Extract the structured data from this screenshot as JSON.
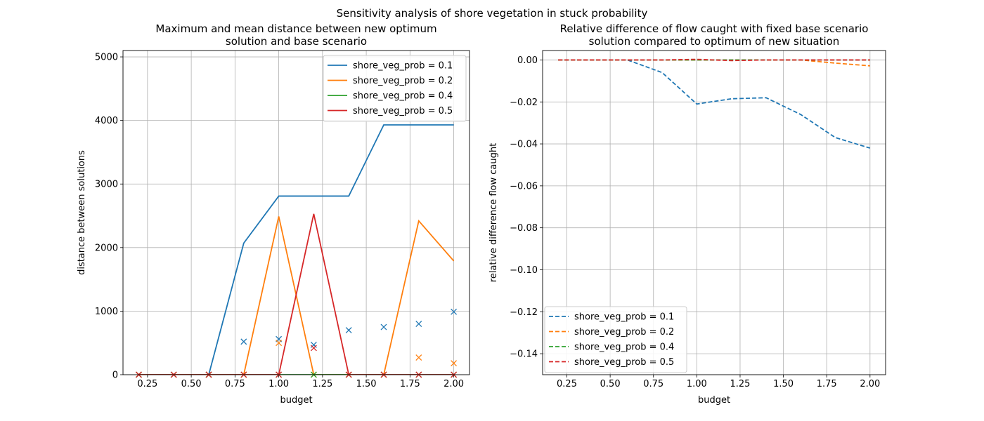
{
  "figure": {
    "suptitle": "Sensitivity analysis of shore vegetation in stuck probability"
  },
  "chart_data": [
    {
      "type": "line",
      "title_lines": [
        "Maximum and mean distance between new optimum",
        "solution and base scenario"
      ],
      "xlabel": "budget",
      "ylabel": "distance between solutions",
      "xlim": [
        0.11,
        2.09
      ],
      "ylim": [
        0,
        5100
      ],
      "xticks": [
        0.25,
        0.5,
        0.75,
        1.0,
        1.25,
        1.5,
        1.75,
        2.0
      ],
      "xtick_labels": [
        "0.25",
        "0.50",
        "0.75",
        "1.00",
        "1.25",
        "1.50",
        "1.75",
        "2.00"
      ],
      "yticks": [
        0,
        1000,
        2000,
        3000,
        4000,
        5000
      ],
      "ytick_labels": [
        "0",
        "1000",
        "2000",
        "3000",
        "4000",
        "5000"
      ],
      "grid": true,
      "legend_position": "upper right",
      "x": [
        0.2,
        0.4,
        0.6,
        0.8,
        1.0,
        1.2,
        1.4,
        1.6,
        1.8,
        2.0
      ],
      "series": [
        {
          "name": "shore_veg_prob = 0.1",
          "color": "#1f77b4",
          "max": [
            0,
            0,
            0,
            2070,
            2810,
            2810,
            2810,
            3930,
            3930,
            3930
          ],
          "mean": [
            0,
            0,
            0,
            520,
            560,
            470,
            700,
            750,
            800,
            990
          ]
        },
        {
          "name": "shore_veg_prob = 0.2",
          "color": "#ff7f0e",
          "max": [
            0,
            0,
            0,
            0,
            2490,
            0,
            0,
            0,
            2420,
            1790
          ],
          "mean": [
            0,
            0,
            0,
            0,
            500,
            0,
            0,
            0,
            270,
            180
          ]
        },
        {
          "name": "shore_veg_prob = 0.4",
          "color": "#2ca02c",
          "max": [
            0,
            0,
            0,
            0,
            0,
            0,
            0,
            0,
            0,
            0
          ],
          "mean": [
            0,
            0,
            0,
            0,
            0,
            0,
            0,
            0,
            0,
            0
          ]
        },
        {
          "name": "shore_veg_prob = 0.5",
          "color": "#d62728",
          "max": [
            0,
            0,
            0,
            0,
            0,
            2530,
            0,
            0,
            0,
            0
          ],
          "mean": [
            0,
            0,
            0,
            0,
            0,
            420,
            0,
            0,
            0,
            0
          ]
        }
      ]
    },
    {
      "type": "line",
      "title_lines": [
        "Relative difference of flow caught with fixed base scenario",
        "solution compared to optimum of new situation"
      ],
      "xlabel": "budget",
      "ylabel": "relative difference flow caught",
      "xlim": [
        0.11,
        2.09
      ],
      "ylim": [
        -0.15,
        0.0045
      ],
      "xticks": [
        0.25,
        0.5,
        0.75,
        1.0,
        1.25,
        1.5,
        1.75,
        2.0
      ],
      "xtick_labels": [
        "0.25",
        "0.50",
        "0.75",
        "1.00",
        "1.25",
        "1.50",
        "1.75",
        "2.00"
      ],
      "yticks": [
        0.0,
        -0.02,
        -0.04,
        -0.06,
        -0.08,
        -0.1,
        -0.12,
        -0.14
      ],
      "ytick_labels": [
        "0.00",
        "−0.02",
        "−0.04",
        "−0.06",
        "−0.08",
        "−0.10",
        "−0.12",
        "−0.14"
      ],
      "grid": true,
      "legend_position": "lower left",
      "x": [
        0.2,
        0.4,
        0.6,
        0.8,
        1.0,
        1.2,
        1.4,
        1.6,
        1.8,
        2.0
      ],
      "series": [
        {
          "name": "shore_veg_prob = 0.1",
          "color": "#1f77b4",
          "values": [
            0,
            0,
            0,
            -0.006,
            -0.021,
            -0.0185,
            -0.018,
            -0.026,
            -0.037,
            -0.042
          ]
        },
        {
          "name": "shore_veg_prob = 0.2",
          "color": "#ff7f0e",
          "values": [
            0,
            0,
            0,
            0,
            0,
            0,
            0,
            0,
            -0.0015,
            -0.0028
          ]
        },
        {
          "name": "shore_veg_prob = 0.4",
          "color": "#2ca02c",
          "values": [
            0,
            0,
            0,
            0,
            0,
            0,
            0,
            0,
            0,
            0
          ]
        },
        {
          "name": "shore_veg_prob = 0.5",
          "color": "#d62728",
          "values": [
            0,
            0,
            0,
            0,
            0.0003,
            -0.0003,
            0,
            0,
            0,
            0
          ]
        }
      ]
    }
  ]
}
